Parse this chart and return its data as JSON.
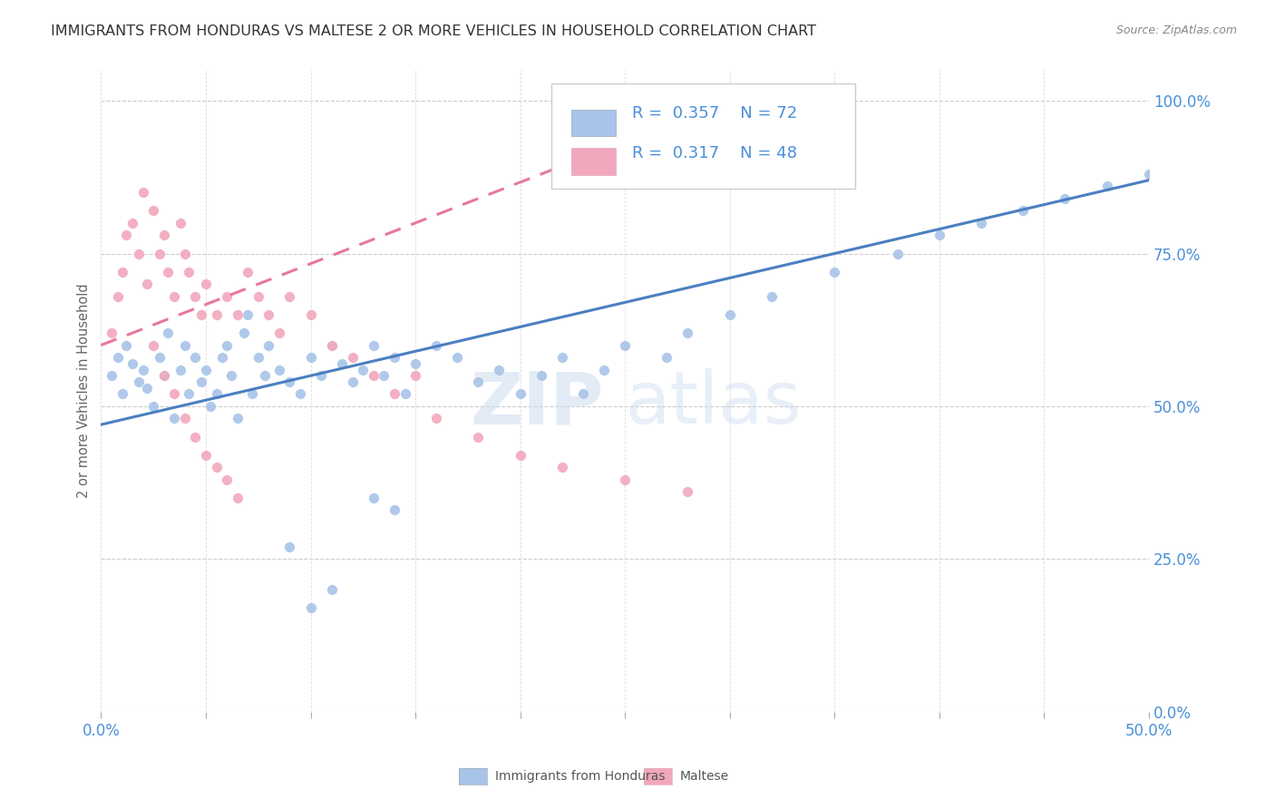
{
  "title": "IMMIGRANTS FROM HONDURAS VS MALTESE 2 OR MORE VEHICLES IN HOUSEHOLD CORRELATION CHART",
  "source": "Source: ZipAtlas.com",
  "ylabel": "2 or more Vehicles in Household",
  "ytick_labels": [
    "0.0%",
    "25.0%",
    "50.0%",
    "75.0%",
    "100.0%"
  ],
  "ytick_values": [
    0.0,
    0.25,
    0.5,
    0.75,
    1.0
  ],
  "xlim": [
    0.0,
    0.5
  ],
  "ylim": [
    0.0,
    1.05
  ],
  "R_honduras": 0.357,
  "N_honduras": 72,
  "R_maltese": 0.317,
  "N_maltese": 48,
  "watermark_zip": "ZIP",
  "watermark_atlas": "atlas",
  "blue_color": "#a8c4e8",
  "pink_color": "#f2a8bc",
  "line_blue": "#4a7fc1",
  "line_pink": "#e8789a",
  "title_color": "#333333",
  "axis_label_color": "#4a90d9",
  "legend_text_color": "#4a90d9",
  "honduras_x": [
    0.005,
    0.008,
    0.01,
    0.012,
    0.015,
    0.018,
    0.02,
    0.022,
    0.025,
    0.028,
    0.03,
    0.032,
    0.035,
    0.038,
    0.04,
    0.042,
    0.045,
    0.048,
    0.05,
    0.052,
    0.055,
    0.058,
    0.06,
    0.062,
    0.065,
    0.068,
    0.07,
    0.072,
    0.075,
    0.078,
    0.08,
    0.085,
    0.09,
    0.095,
    0.1,
    0.105,
    0.11,
    0.115,
    0.12,
    0.125,
    0.13,
    0.135,
    0.14,
    0.145,
    0.15,
    0.16,
    0.17,
    0.18,
    0.19,
    0.2,
    0.21,
    0.22,
    0.23,
    0.24,
    0.25,
    0.27,
    0.28,
    0.3,
    0.32,
    0.35,
    0.38,
    0.4,
    0.42,
    0.44,
    0.46,
    0.48,
    0.5,
    0.09,
    0.1,
    0.11,
    0.13,
    0.14
  ],
  "honduras_y": [
    0.55,
    0.58,
    0.52,
    0.6,
    0.57,
    0.54,
    0.56,
    0.53,
    0.5,
    0.58,
    0.55,
    0.62,
    0.48,
    0.56,
    0.6,
    0.52,
    0.58,
    0.54,
    0.56,
    0.5,
    0.52,
    0.58,
    0.6,
    0.55,
    0.48,
    0.62,
    0.65,
    0.52,
    0.58,
    0.55,
    0.6,
    0.56,
    0.54,
    0.52,
    0.58,
    0.55,
    0.6,
    0.57,
    0.54,
    0.56,
    0.6,
    0.55,
    0.58,
    0.52,
    0.57,
    0.6,
    0.58,
    0.54,
    0.56,
    0.52,
    0.55,
    0.58,
    0.52,
    0.56,
    0.6,
    0.58,
    0.62,
    0.65,
    0.68,
    0.72,
    0.75,
    0.78,
    0.8,
    0.82,
    0.84,
    0.86,
    0.88,
    0.27,
    0.17,
    0.2,
    0.35,
    0.33
  ],
  "maltese_x": [
    0.005,
    0.008,
    0.01,
    0.012,
    0.015,
    0.018,
    0.02,
    0.022,
    0.025,
    0.028,
    0.03,
    0.032,
    0.035,
    0.038,
    0.04,
    0.042,
    0.045,
    0.048,
    0.05,
    0.055,
    0.06,
    0.065,
    0.07,
    0.075,
    0.08,
    0.085,
    0.09,
    0.1,
    0.11,
    0.12,
    0.13,
    0.14,
    0.15,
    0.16,
    0.18,
    0.2,
    0.22,
    0.25,
    0.28,
    0.025,
    0.03,
    0.035,
    0.04,
    0.045,
    0.05,
    0.055,
    0.06,
    0.065
  ],
  "maltese_y": [
    0.62,
    0.68,
    0.72,
    0.78,
    0.8,
    0.75,
    0.85,
    0.7,
    0.82,
    0.75,
    0.78,
    0.72,
    0.68,
    0.8,
    0.75,
    0.72,
    0.68,
    0.65,
    0.7,
    0.65,
    0.68,
    0.65,
    0.72,
    0.68,
    0.65,
    0.62,
    0.68,
    0.65,
    0.6,
    0.58,
    0.55,
    0.52,
    0.55,
    0.48,
    0.45,
    0.42,
    0.4,
    0.38,
    0.36,
    0.6,
    0.55,
    0.52,
    0.48,
    0.45,
    0.42,
    0.4,
    0.38,
    0.35
  ],
  "blue_line_x": [
    0.0,
    0.5
  ],
  "blue_line_y": [
    0.47,
    0.87
  ],
  "pink_line_x": [
    0.0,
    0.3
  ],
  "pink_line_y": [
    0.6,
    1.0
  ]
}
